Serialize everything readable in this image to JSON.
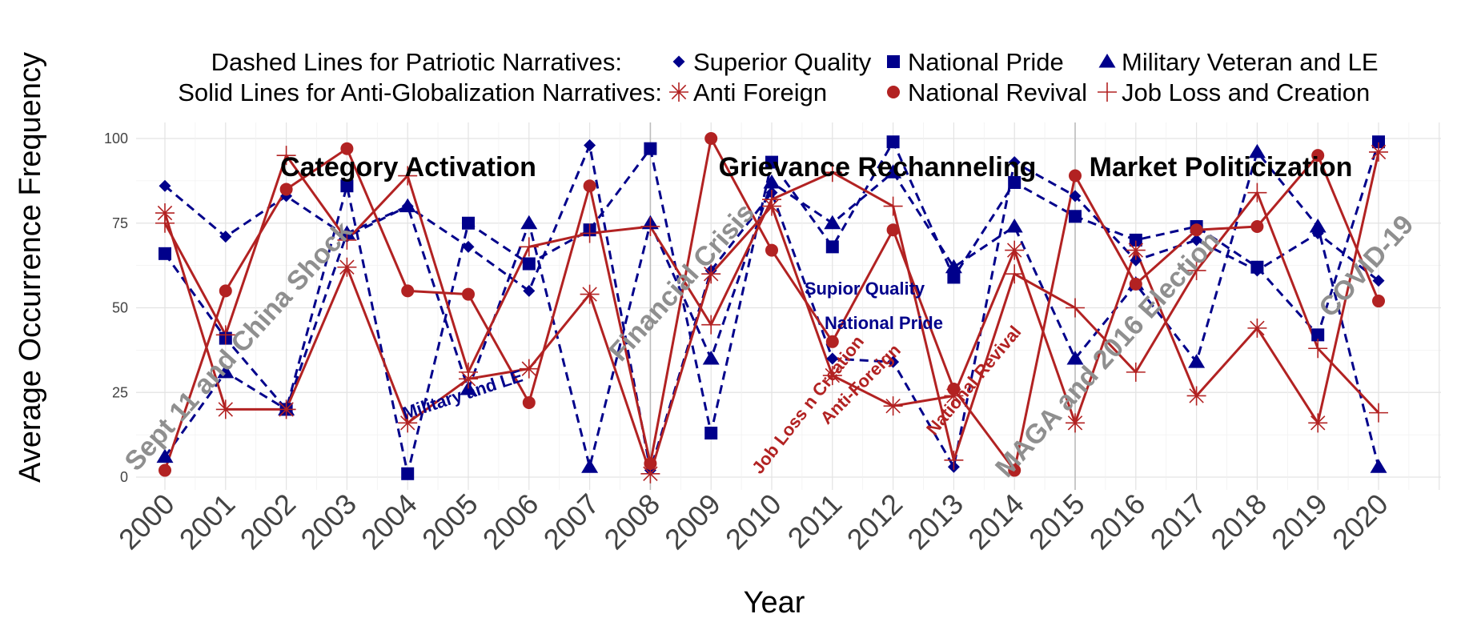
{
  "chart_data": {
    "type": "line",
    "xlabel": "Year",
    "ylabel": "Average Occurrence Frequency",
    "ylim": [
      -3,
      105
    ],
    "y_ticks": [
      "0",
      "25",
      "50",
      "75",
      "100"
    ],
    "y_tick_values": [
      0,
      25,
      50,
      75,
      100
    ],
    "grid": true,
    "legend_position": "top",
    "legend_headers": [
      "Dashed Lines for Patriotic Narratives:",
      "Solid Lines for Anti-Globalization Narratives:"
    ],
    "categories": [
      "2000",
      "2001",
      "2002",
      "2003",
      "2004",
      "2005",
      "2006",
      "2007",
      "2008",
      "2009",
      "2010",
      "2011",
      "2012",
      "2013",
      "2014",
      "2015",
      "2016",
      "2017",
      "2018",
      "2019",
      "2020"
    ],
    "series": [
      {
        "name": "Superior Quality",
        "group": "patriotic",
        "dashed": true,
        "marker": "diamond",
        "color": "#00008B",
        "values": [
          86,
          71,
          83,
          71,
          80,
          68,
          55,
          98,
          2,
          61,
          84,
          35,
          34,
          3,
          93,
          83,
          64,
          70,
          61,
          72,
          58
        ]
      },
      {
        "name": "National Pride",
        "group": "patriotic",
        "dashed": true,
        "marker": "square",
        "color": "#00008B",
        "values": [
          66,
          41,
          20,
          86,
          1,
          75,
          63,
          73,
          97,
          13,
          93,
          68,
          99,
          59,
          87,
          77,
          70,
          74,
          62,
          42,
          99
        ]
      },
      {
        "name": "Military Veteran and LE",
        "group": "patriotic",
        "dashed": true,
        "marker": "triangle",
        "color": "#00008B",
        "values": [
          6,
          31,
          20,
          72,
          80,
          26,
          75,
          3,
          75,
          35,
          87,
          75,
          90,
          62,
          74,
          35,
          57,
          34,
          96,
          74,
          3
        ]
      },
      {
        "name": "Anti Foreign",
        "group": "anti-globalization",
        "dashed": false,
        "marker": "asterisk",
        "color": "#B22222",
        "values": [
          78,
          20,
          20,
          62,
          16,
          29,
          32,
          54,
          1,
          60,
          80,
          30,
          21,
          24,
          67,
          16,
          67,
          24,
          44,
          16,
          96
        ]
      },
      {
        "name": "National Revival",
        "group": "anti-globalization",
        "dashed": false,
        "marker": "circle",
        "color": "#B22222",
        "values": [
          2,
          55,
          85,
          97,
          55,
          54,
          22,
          86,
          4,
          100,
          67,
          40,
          73,
          26,
          2,
          89,
          57,
          73,
          74,
          95,
          52
        ]
      },
      {
        "name": "Job Loss and Creation",
        "group": "anti-globalization",
        "dashed": false,
        "marker": "plus",
        "color": "#B22222",
        "values": [
          75,
          42,
          95,
          70,
          89,
          31,
          68,
          72,
          74,
          45,
          82,
          90,
          80,
          5,
          60,
          50,
          31,
          61,
          84,
          38,
          19
        ]
      }
    ],
    "vertical_lines": [
      "2008",
      "2015"
    ],
    "period_annotations": [
      "Category Activation",
      "Grievance Rechanneling",
      "Market Politicization"
    ],
    "event_annotations": [
      "Sept 11 and China Shock",
      "Financial Crisis",
      "MAGA and 2016 Election",
      "COVID-19"
    ],
    "series_annotations": [
      {
        "text": "Military and LE",
        "color": "#00008B"
      },
      {
        "text": "Supior Quality",
        "color": "#00008B"
      },
      {
        "text": "National Pride",
        "color": "#00008B"
      },
      {
        "text": "Job Loss n Creation",
        "color": "#B22222"
      },
      {
        "text": "Anti-Foreign",
        "color": "#B22222"
      },
      {
        "text": "National Revival",
        "color": "#B22222"
      }
    ]
  }
}
